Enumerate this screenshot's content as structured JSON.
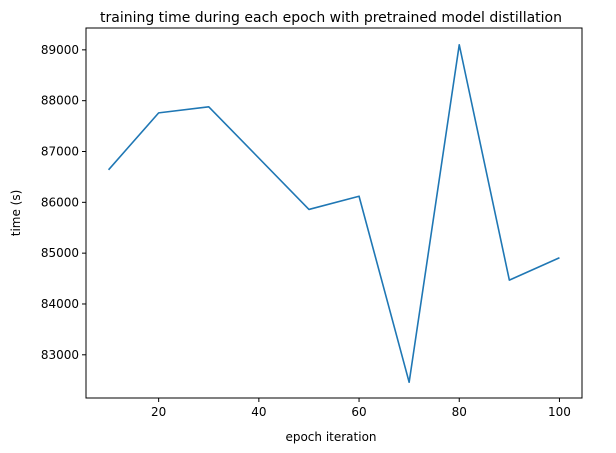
{
  "chart_data": {
    "type": "line",
    "title": "training time during each epoch with pretrained model distillation",
    "xlabel": "epoch iteration",
    "ylabel": "time (s)",
    "xlim": [
      5.5,
      104.5
    ],
    "ylim": [
      82150,
      89430
    ],
    "xticks": [
      20,
      40,
      60,
      80,
      100
    ],
    "yticks": [
      83000,
      84000,
      85000,
      86000,
      87000,
      88000,
      89000
    ],
    "grid": false,
    "series": [
      {
        "color": "#1f77b4",
        "x": [
          10,
          20,
          30,
          50,
          60,
          70,
          80,
          90,
          100
        ],
        "y": [
          86640,
          87760,
          87880,
          85860,
          86120,
          82460,
          89100,
          84470,
          84910
        ]
      }
    ]
  }
}
